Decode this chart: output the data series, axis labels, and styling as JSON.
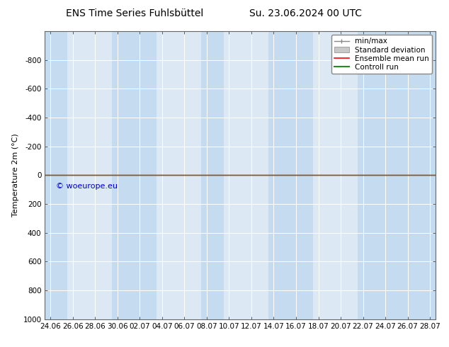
{
  "title_left": "ENS Time Series Fuhlsbüttel",
  "title_right": "Su. 23.06.2024 00 UTC",
  "ylabel": "Temperature 2m (°C)",
  "ylim": [
    -1000,
    1000
  ],
  "yticks": [
    -800,
    -600,
    -400,
    -200,
    0,
    200,
    400,
    600,
    800,
    1000
  ],
  "x_labels": [
    "24.06",
    "26.06",
    "28.06",
    "30.06",
    "02.07",
    "04.07",
    "06.07",
    "08.07",
    "10.07",
    "12.07",
    "14.07",
    "16.07",
    "18.07",
    "20.07",
    "22.07",
    "24.07",
    "26.07",
    "28.07"
  ],
  "x_values": [
    0,
    2,
    4,
    6,
    8,
    10,
    12,
    14,
    16,
    18,
    20,
    22,
    24,
    26,
    28,
    30,
    32,
    34
  ],
  "xlim": [
    0,
    34
  ],
  "shaded_bands": [
    [
      -0.5,
      1.5
    ],
    [
      5.5,
      9.5
    ],
    [
      13.5,
      15.5
    ],
    [
      19.5,
      23.5
    ],
    [
      27.5,
      34.5
    ]
  ],
  "bg_color": "#ffffff",
  "plot_bg_color": "#dce9f5",
  "band_color": "#c5dcf0",
  "grid_color": "#ffffff",
  "ensemble_mean_color": "#ff0000",
  "control_run_color": "#228b22",
  "std_dev_color": "#c8c8c8",
  "min_max_color": "#888888",
  "copyright_text": "© woeurope.eu",
  "copyright_color": "#0000cc",
  "title_fontsize": 10,
  "axis_fontsize": 8,
  "tick_fontsize": 7.5,
  "legend_fontsize": 7.5
}
